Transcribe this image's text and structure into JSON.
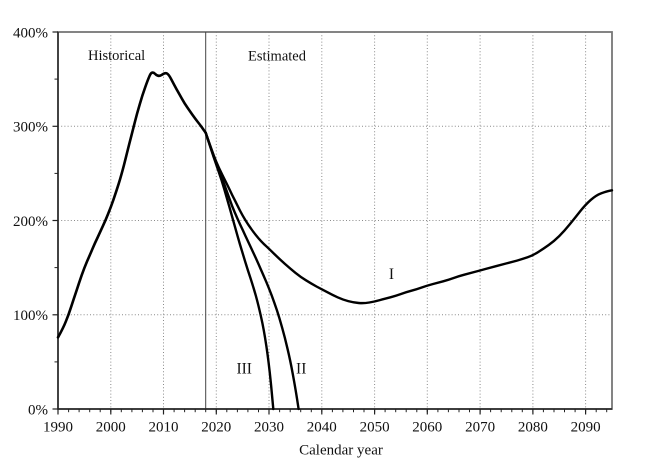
{
  "chart_data": {
    "type": "line",
    "title": "",
    "xlabel": "Calendar year",
    "ylabel": "",
    "xlim": [
      1990,
      2095
    ],
    "ylim": [
      0,
      400
    ],
    "x_major_ticks": [
      1990,
      2000,
      2010,
      2020,
      2030,
      2040,
      2050,
      2060,
      2070,
      2080,
      2090
    ],
    "x_minor_step": 2,
    "y_major_ticks": [
      0,
      100,
      200,
      300,
      400
    ],
    "y_tick_labels": [
      "0%",
      "100%",
      "200%",
      "300%",
      "400%"
    ],
    "y_minor_step": 50,
    "grid": "dotted",
    "legend_position": "none",
    "divider_x": 2018,
    "colors": {
      "curve": "#000000",
      "grid": "#8a8a8a",
      "frame": "#777777",
      "axis": "#222222",
      "divider": "#444444"
    },
    "annotations": [
      {
        "id": "historical",
        "text": "Historical",
        "x": 2001.1,
        "y": 375.5,
        "size": 14.5
      },
      {
        "id": "estimated",
        "text": "Estimated",
        "x": 2031.5,
        "y": 375.0,
        "size": 14.5
      },
      {
        "id": "alt-1",
        "text": "I",
        "x": 2053.2,
        "y": 143.5,
        "size": 15.5
      },
      {
        "id": "alt-3",
        "text": "III",
        "x": 2025.3,
        "y": 43.5,
        "size": 15.5
      },
      {
        "id": "alt-2",
        "text": "II",
        "x": 2036.1,
        "y": 43.5,
        "size": 15.5
      }
    ],
    "series": [
      {
        "name": "Historical",
        "width": 2.6,
        "points": [
          [
            1990,
            76
          ],
          [
            1991,
            86
          ],
          [
            1992,
            100
          ],
          [
            1993,
            117
          ],
          [
            1994,
            134
          ],
          [
            1995,
            150
          ],
          [
            1996,
            163
          ],
          [
            1997,
            176
          ],
          [
            1998,
            188
          ],
          [
            1999,
            200
          ],
          [
            2000,
            214
          ],
          [
            2001,
            230
          ],
          [
            2002,
            248
          ],
          [
            2003,
            270
          ],
          [
            2004,
            292
          ],
          [
            2005,
            314
          ],
          [
            2006,
            333
          ],
          [
            2007,
            349
          ],
          [
            2007.8,
            359
          ],
          [
            2009,
            352
          ],
          [
            2010.3,
            357
          ],
          [
            2011,
            355
          ],
          [
            2012,
            344
          ],
          [
            2013,
            334
          ],
          [
            2014,
            324
          ],
          [
            2015,
            316
          ],
          [
            2016,
            308
          ],
          [
            2017,
            301
          ],
          [
            2018,
            293
          ]
        ]
      },
      {
        "name": "I",
        "width": 2.4,
        "points": [
          [
            2018,
            293
          ],
          [
            2019,
            277
          ],
          [
            2020,
            262
          ],
          [
            2021,
            250
          ],
          [
            2022,
            239
          ],
          [
            2023,
            227
          ],
          [
            2024,
            216
          ],
          [
            2025,
            205
          ],
          [
            2026,
            196
          ],
          [
            2027,
            188
          ],
          [
            2028,
            181
          ],
          [
            2029,
            175
          ],
          [
            2030,
            170
          ],
          [
            2032,
            159
          ],
          [
            2034,
            149
          ],
          [
            2036,
            140
          ],
          [
            2038,
            133
          ],
          [
            2040,
            127
          ],
          [
            2042,
            121
          ],
          [
            2044,
            116
          ],
          [
            2046,
            113
          ],
          [
            2048,
            112
          ],
          [
            2050,
            114
          ],
          [
            2052,
            117
          ],
          [
            2054,
            120
          ],
          [
            2056,
            124
          ],
          [
            2058,
            127
          ],
          [
            2060,
            131
          ],
          [
            2062,
            134
          ],
          [
            2064,
            137
          ],
          [
            2066,
            141
          ],
          [
            2068,
            144
          ],
          [
            2070,
            147
          ],
          [
            2072,
            150
          ],
          [
            2074,
            153
          ],
          [
            2076,
            156
          ],
          [
            2078,
            159
          ],
          [
            2080,
            163
          ],
          [
            2082,
            170
          ],
          [
            2084,
            178
          ],
          [
            2086,
            189
          ],
          [
            2088,
            203
          ],
          [
            2090,
            217
          ],
          [
            2092,
            227
          ],
          [
            2094,
            231
          ],
          [
            2095,
            232
          ]
        ]
      },
      {
        "name": "II",
        "width": 2.4,
        "points": [
          [
            2018,
            293
          ],
          [
            2019,
            276
          ],
          [
            2020,
            260
          ],
          [
            2021,
            246
          ],
          [
            2022,
            231
          ],
          [
            2023,
            215
          ],
          [
            2024,
            202
          ],
          [
            2025,
            190
          ],
          [
            2026,
            178
          ],
          [
            2027,
            166
          ],
          [
            2028,
            154
          ],
          [
            2029,
            141
          ],
          [
            2030,
            128
          ],
          [
            2031,
            113
          ],
          [
            2032,
            96
          ],
          [
            2033,
            76
          ],
          [
            2034,
            52
          ],
          [
            2035,
            22
          ],
          [
            2035.6,
            0
          ]
        ]
      },
      {
        "name": "III",
        "width": 2.4,
        "points": [
          [
            2018,
            293
          ],
          [
            2019,
            276
          ],
          [
            2020,
            259
          ],
          [
            2021,
            243
          ],
          [
            2022,
            224
          ],
          [
            2023,
            204
          ],
          [
            2024,
            184
          ],
          [
            2025,
            165
          ],
          [
            2026,
            147
          ],
          [
            2027,
            130
          ],
          [
            2028,
            110
          ],
          [
            2029,
            85
          ],
          [
            2030,
            48
          ],
          [
            2030.8,
            0
          ]
        ]
      }
    ]
  },
  "layout_note": "Trust fund ratio chart: historical curve to 2018, estimated alternatives I, II, III thereafter"
}
